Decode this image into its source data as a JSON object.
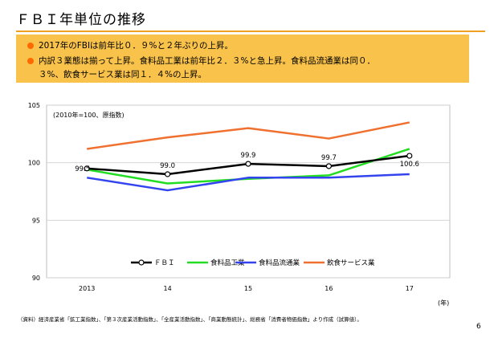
{
  "title": "ＦＢＩ年単位の推移",
  "summary": {
    "bullets": [
      "2017年のFBIは前年比０．９%と２年ぶりの上昇。",
      "内訳３業態は揃って上昇。食料品工業は前年比２．３%と急上昇。食料品流通業は同０．",
      "３%、飲食サービス業は同１．４%の上昇。"
    ]
  },
  "colors": {
    "title_rule": "#f0a020",
    "summary_bg": "#f9c24a",
    "bullet": "#ff6a00"
  },
  "chart_data": {
    "type": "line",
    "note": "(2010年=100、原指数)",
    "categories": [
      "2013",
      "14",
      "15",
      "16",
      "17"
    ],
    "x_unit": "(年)",
    "ylim": [
      90,
      105
    ],
    "yticks": [
      90,
      95,
      100,
      105
    ],
    "grid": true,
    "legend_position": "bottom",
    "series": [
      {
        "name": "ＦＢＩ",
        "color": "#000000",
        "markers": true,
        "values": [
          99.5,
          99.0,
          99.9,
          99.7,
          100.6
        ],
        "labels": [
          "99.5",
          "99.0",
          "99.9",
          "99.7",
          "100.6"
        ]
      },
      {
        "name": "食料品工業",
        "color": "#22dd22",
        "markers": false,
        "values": [
          99.4,
          98.2,
          98.6,
          98.9,
          101.2
        ]
      },
      {
        "name": "食料品流通業",
        "color": "#3344ee",
        "markers": false,
        "values": [
          98.7,
          97.6,
          98.7,
          98.7,
          99.0
        ]
      },
      {
        "name": "飲食サービス業",
        "color": "#f07030",
        "markers": false,
        "values": [
          101.2,
          102.2,
          103.0,
          102.1,
          103.5
        ]
      }
    ]
  },
  "footnote": "（資料）経済産業省「鉱工業指数」、「第３次産業活動指数」、「全産業活動指数」、「商業動態統計」、総務省「消費者物価指数」より作成（試算値）。",
  "page_number": "6"
}
